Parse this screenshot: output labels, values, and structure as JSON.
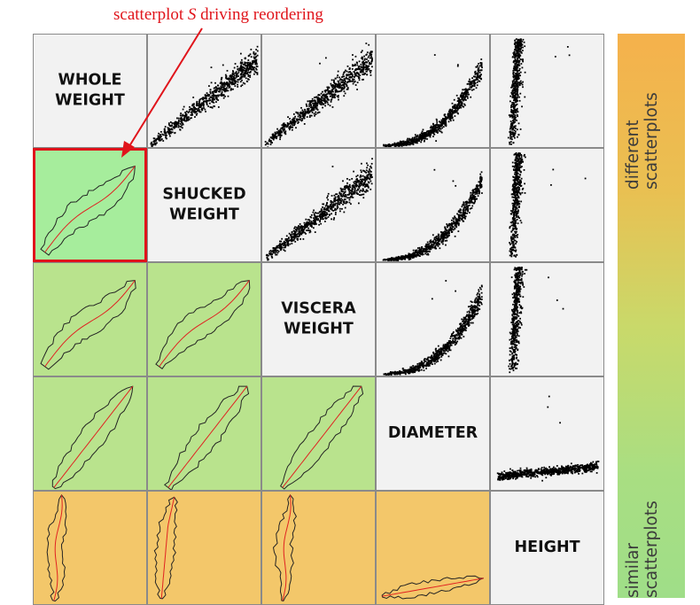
{
  "annotation": {
    "before": "scatterplot ",
    "symbol": "S",
    "after": " driving reordering"
  },
  "variables": [
    "WHOLE\nWEIGHT",
    "SHUCKED\nWEIGHT",
    "VISCERA\nWEIGHT",
    "DIAMETER",
    "HEIGHT"
  ],
  "legend": {
    "top_label": "different\nscatterplots",
    "bottom_label": "similar\nscatterplots"
  },
  "colors": {
    "annotation_red": "#e0141b",
    "most_similar": "#a6ed9c",
    "similar": "#b9e38d",
    "different": "#f3c76a",
    "diagonal": "#f2f2f2",
    "upper_background": "#f2f2f2",
    "points": "#000000",
    "contour": "#222222",
    "median_line": "#e02020"
  },
  "lower_cells": [
    {
      "row": 1,
      "col": 0,
      "similarity": "most_similar",
      "driver": true
    },
    {
      "row": 2,
      "col": 0,
      "similarity": "similar",
      "driver": false
    },
    {
      "row": 2,
      "col": 1,
      "similarity": "similar",
      "driver": false
    },
    {
      "row": 3,
      "col": 0,
      "similarity": "similar",
      "driver": false
    },
    {
      "row": 3,
      "col": 1,
      "similarity": "similar",
      "driver": false
    },
    {
      "row": 3,
      "col": 2,
      "similarity": "similar",
      "driver": false
    },
    {
      "row": 4,
      "col": 0,
      "similarity": "different",
      "driver": false
    },
    {
      "row": 4,
      "col": 1,
      "similarity": "different",
      "driver": false
    },
    {
      "row": 4,
      "col": 2,
      "similarity": "different",
      "driver": false
    },
    {
      "row": 4,
      "col": 3,
      "similarity": "different",
      "driver": false
    }
  ],
  "upper_cells": [
    {
      "row": 0,
      "col": 1,
      "shape": "linear"
    },
    {
      "row": 0,
      "col": 2,
      "shape": "linear"
    },
    {
      "row": 0,
      "col": 3,
      "shape": "curved"
    },
    {
      "row": 0,
      "col": 4,
      "shape": "vertical"
    },
    {
      "row": 1,
      "col": 2,
      "shape": "linear"
    },
    {
      "row": 1,
      "col": 3,
      "shape": "curved"
    },
    {
      "row": 1,
      "col": 4,
      "shape": "vertical"
    },
    {
      "row": 2,
      "col": 3,
      "shape": "curved"
    },
    {
      "row": 2,
      "col": 4,
      "shape": "vertical"
    },
    {
      "row": 3,
      "col": 4,
      "shape": "horizontal"
    }
  ]
}
